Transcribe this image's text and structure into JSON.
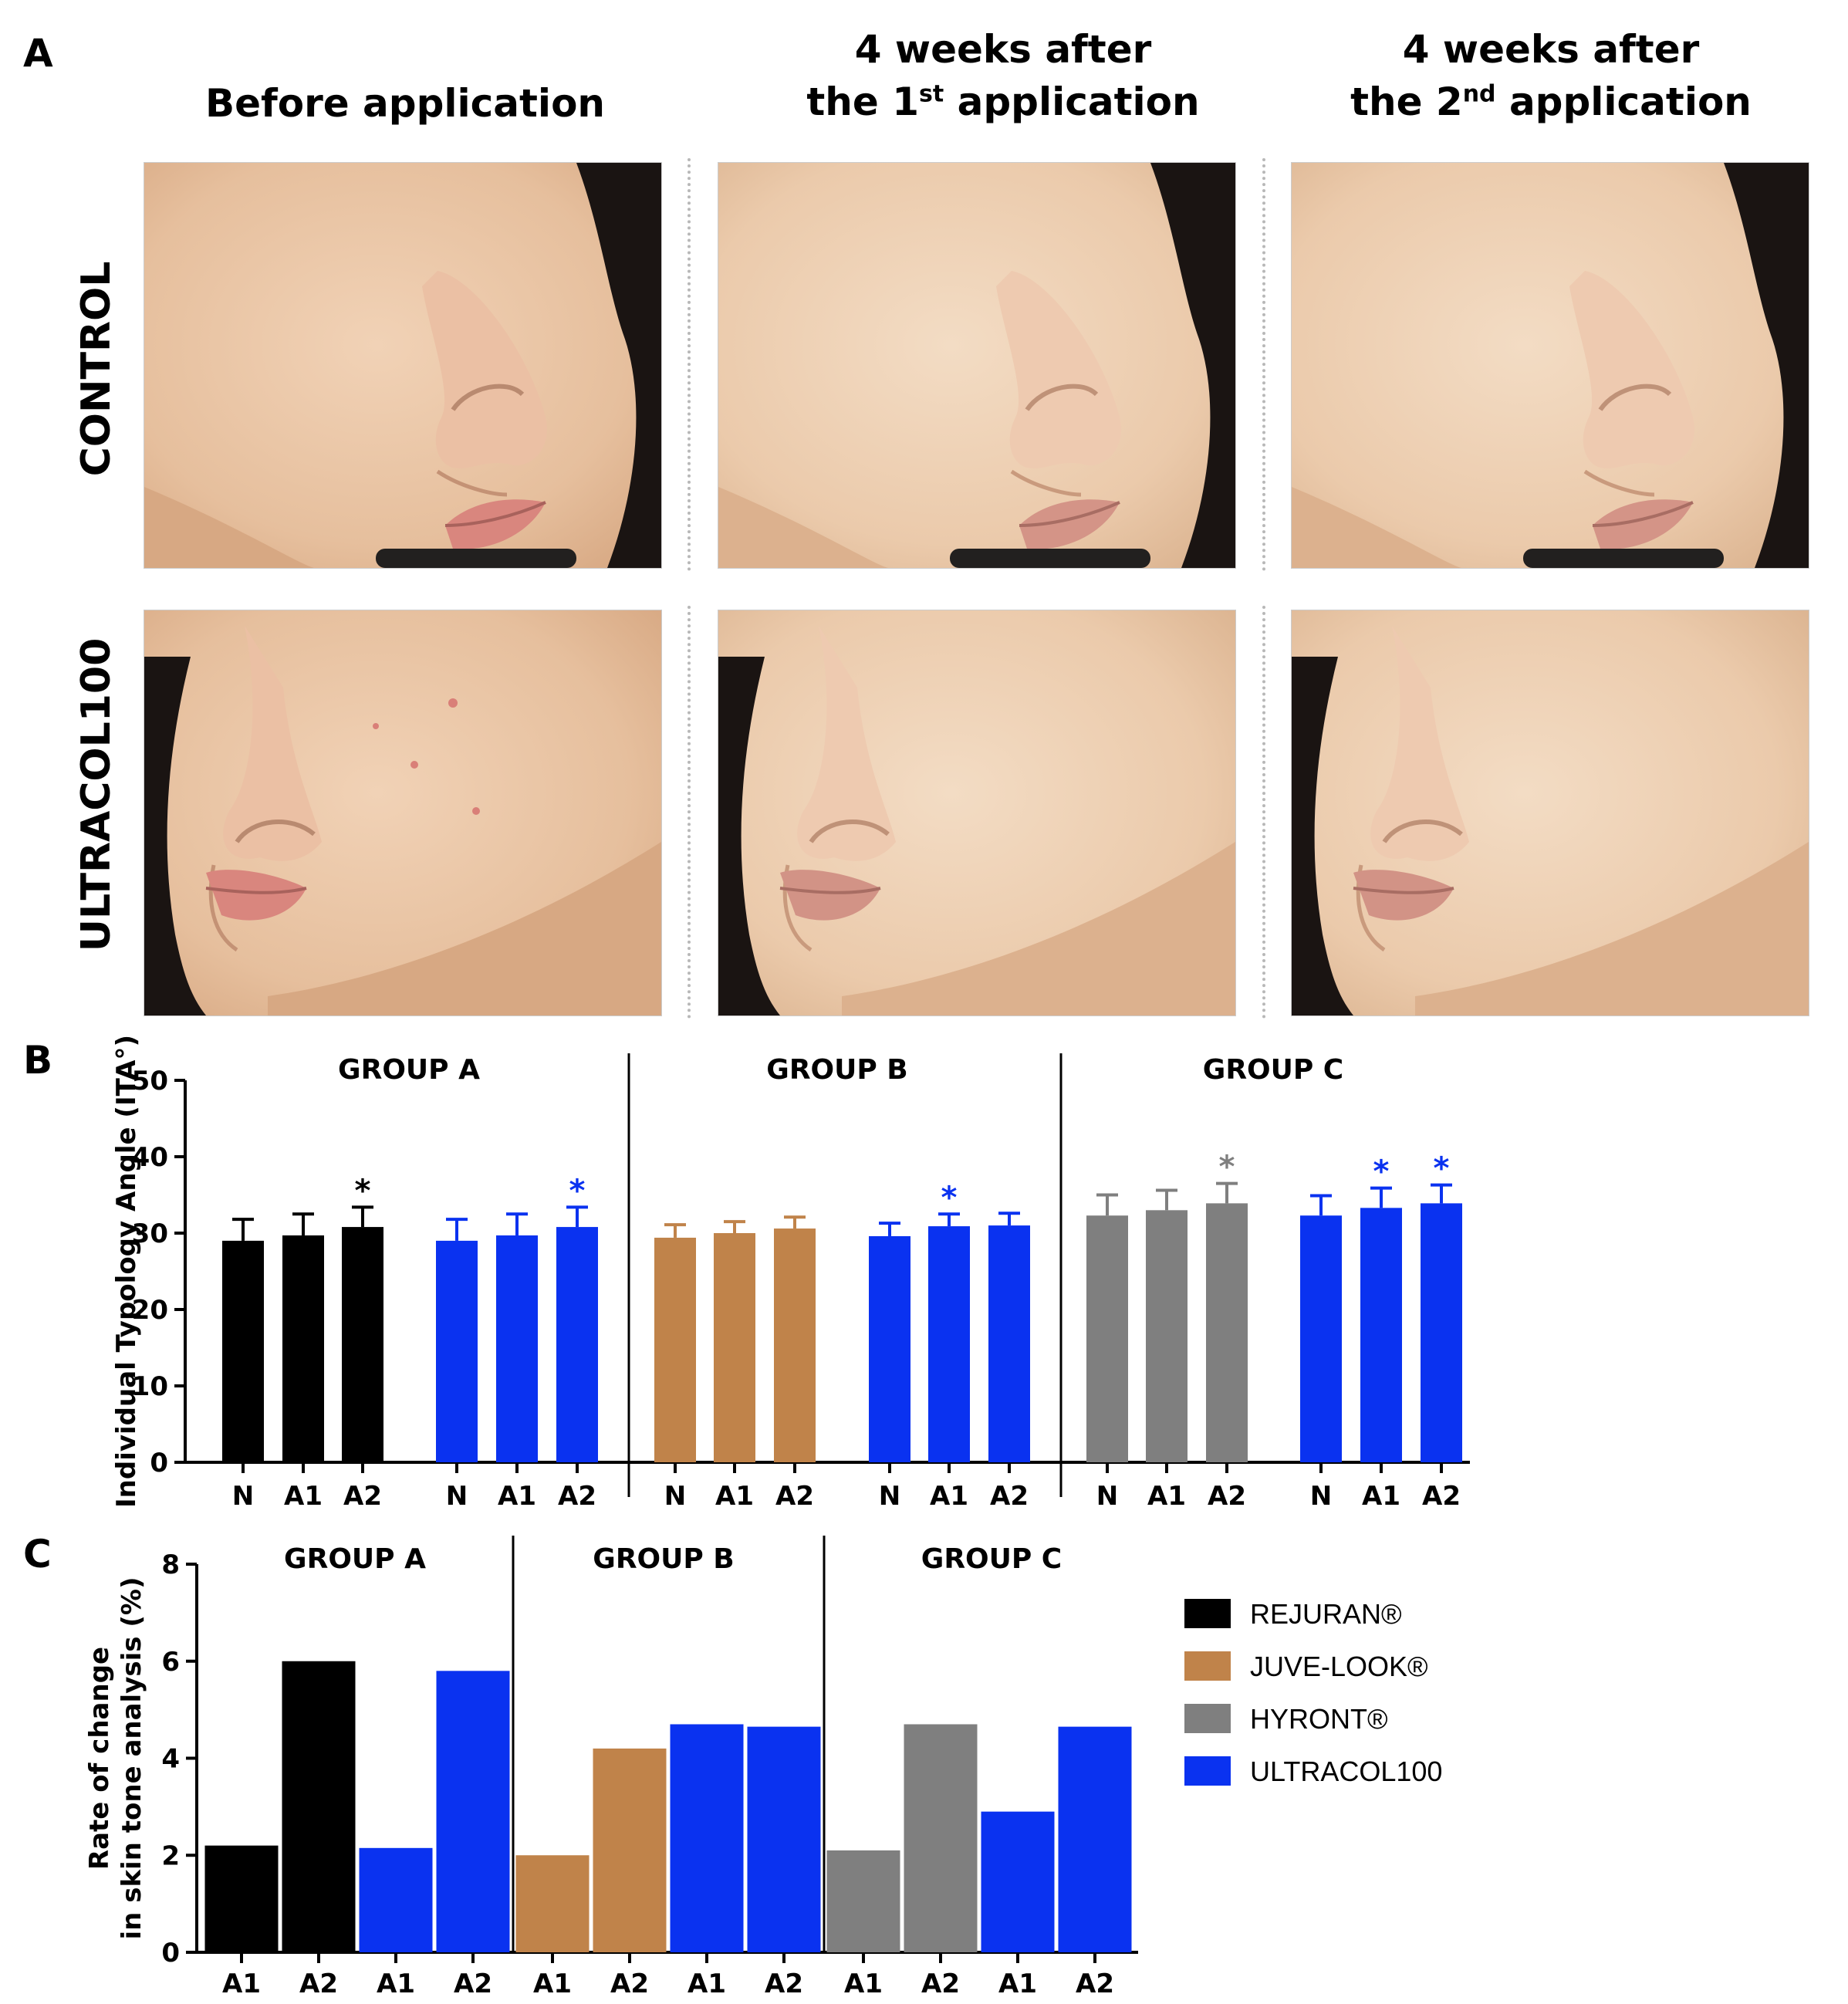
{
  "panels": {
    "a": "A",
    "b": "B",
    "c": "C"
  },
  "panel_a": {
    "columns": [
      {
        "line1": "",
        "line2": "Before application"
      },
      {
        "line1": "4 weeks after",
        "line2_pre": "the 1",
        "line2_sup": "st",
        "line2_post": " application"
      },
      {
        "line1": "4 weeks after",
        "line2_pre": "the 2",
        "line2_sup": "nd",
        "line2_post": " application"
      }
    ],
    "rows": [
      "CONTROL",
      "ULTRACOL100"
    ]
  },
  "colors": {
    "REJURAN®": "#000000",
    "JUVE-LOOK®": "#C0834A",
    "HYRONT®": "#7F7F7F",
    "ULTRACOL100": "#0A32F0"
  },
  "chart_data": [
    {
      "type": "bar",
      "panel": "B",
      "ylabel": "Individual Typology Angle (ITA°)",
      "ylim": [
        0,
        50
      ],
      "yticks": [
        0,
        10,
        20,
        30,
        40,
        50
      ],
      "groups": [
        {
          "label": "GROUP A",
          "series": [
            {
              "product": "REJURAN®",
              "categories": [
                "N",
                "A1",
                "A2"
              ],
              "values": [
                29.0,
                29.7,
                30.8
              ],
              "errors": [
                2.8,
                2.8,
                2.6
              ],
              "significant": [
                false,
                false,
                true
              ]
            },
            {
              "product": "ULTRACOL100",
              "categories": [
                "N",
                "A1",
                "A2"
              ],
              "values": [
                29.0,
                29.7,
                30.8
              ],
              "errors": [
                2.8,
                2.8,
                2.6
              ],
              "significant": [
                false,
                false,
                true
              ]
            }
          ]
        },
        {
          "label": "GROUP B",
          "series": [
            {
              "product": "JUVE-LOOK®",
              "categories": [
                "N",
                "A1",
                "A2"
              ],
              "values": [
                29.4,
                30.0,
                30.6
              ],
              "errors": [
                1.7,
                1.5,
                1.5
              ],
              "significant": [
                false,
                false,
                false
              ]
            },
            {
              "product": "ULTRACOL100",
              "categories": [
                "N",
                "A1",
                "A2"
              ],
              "values": [
                29.6,
                30.9,
                31.0
              ],
              "errors": [
                1.7,
                1.6,
                1.6
              ],
              "significant": [
                false,
                true,
                false
              ]
            }
          ]
        },
        {
          "label": "GROUP C",
          "series": [
            {
              "product": "HYRONT®",
              "categories": [
                "N",
                "A1",
                "A2"
              ],
              "values": [
                32.3,
                33.0,
                33.9
              ],
              "errors": [
                2.7,
                2.6,
                2.6
              ],
              "significant": [
                false,
                false,
                true
              ]
            },
            {
              "product": "ULTRACOL100",
              "categories": [
                "N",
                "A1",
                "A2"
              ],
              "values": [
                32.3,
                33.3,
                33.9
              ],
              "errors": [
                2.6,
                2.6,
                2.4
              ],
              "significant": [
                false,
                true,
                true
              ]
            }
          ]
        }
      ]
    },
    {
      "type": "bar",
      "panel": "C",
      "ylabel_line1": "Rate of change",
      "ylabel_line2": "in skin tone analysis (%)",
      "ylim": [
        0,
        8
      ],
      "yticks": [
        0,
        2,
        4,
        6,
        8
      ],
      "groups": [
        {
          "label": "GROUP A",
          "series": [
            {
              "product": "REJURAN®",
              "categories": [
                "A1",
                "A2"
              ],
              "values": [
                2.2,
                6.0
              ]
            },
            {
              "product": "ULTRACOL100",
              "categories": [
                "A1",
                "A2"
              ],
              "values": [
                2.15,
                5.8
              ]
            }
          ]
        },
        {
          "label": "GROUP B",
          "series": [
            {
              "product": "JUVE-LOOK®",
              "categories": [
                "A1",
                "A2"
              ],
              "values": [
                2.0,
                4.2
              ]
            },
            {
              "product": "ULTRACOL100",
              "categories": [
                "A1",
                "A2"
              ],
              "values": [
                4.7,
                4.65
              ]
            }
          ]
        },
        {
          "label": "GROUP C",
          "series": [
            {
              "product": "HYRONT®",
              "categories": [
                "A1",
                "A2"
              ],
              "values": [
                2.1,
                4.7
              ]
            },
            {
              "product": "ULTRACOL100",
              "categories": [
                "A1",
                "A2"
              ],
              "values": [
                2.9,
                4.65
              ]
            }
          ]
        }
      ],
      "legend": {
        "placement": "right",
        "entries": [
          "REJURAN®",
          "JUVE-LOOK®",
          "HYRONT®",
          "ULTRACOL100"
        ]
      }
    }
  ]
}
